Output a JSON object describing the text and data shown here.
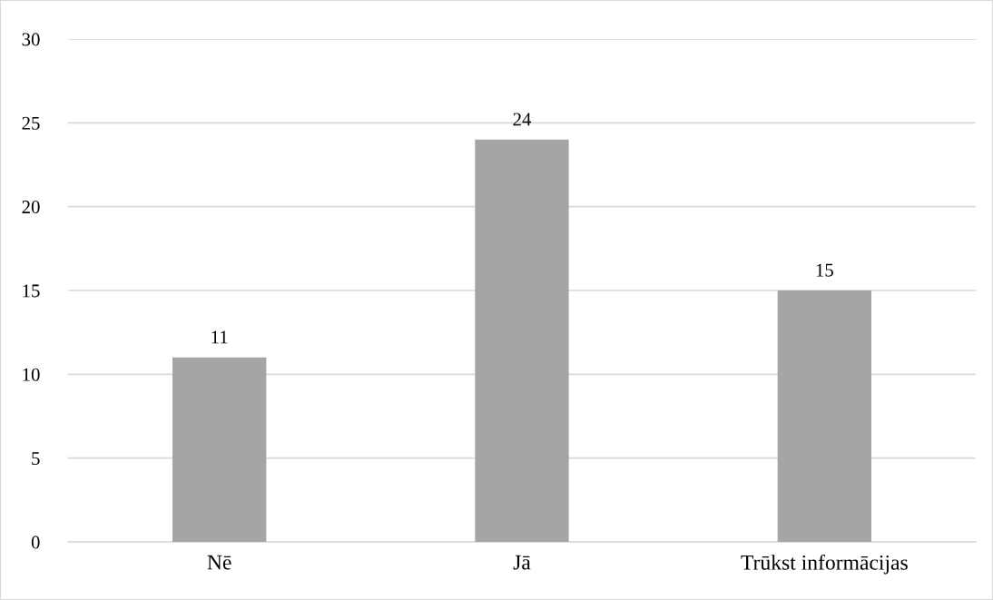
{
  "chart_data": {
    "type": "bar",
    "categories": [
      "Nē",
      "Jā",
      "Trūkst informācijas"
    ],
    "values": [
      11,
      24,
      15
    ],
    "color": "#a5a5a5",
    "ylim": [
      0,
      30
    ],
    "yticks": [
      0,
      5,
      10,
      15,
      20,
      25,
      30
    ],
    "grid": "y",
    "data_labels": true
  }
}
